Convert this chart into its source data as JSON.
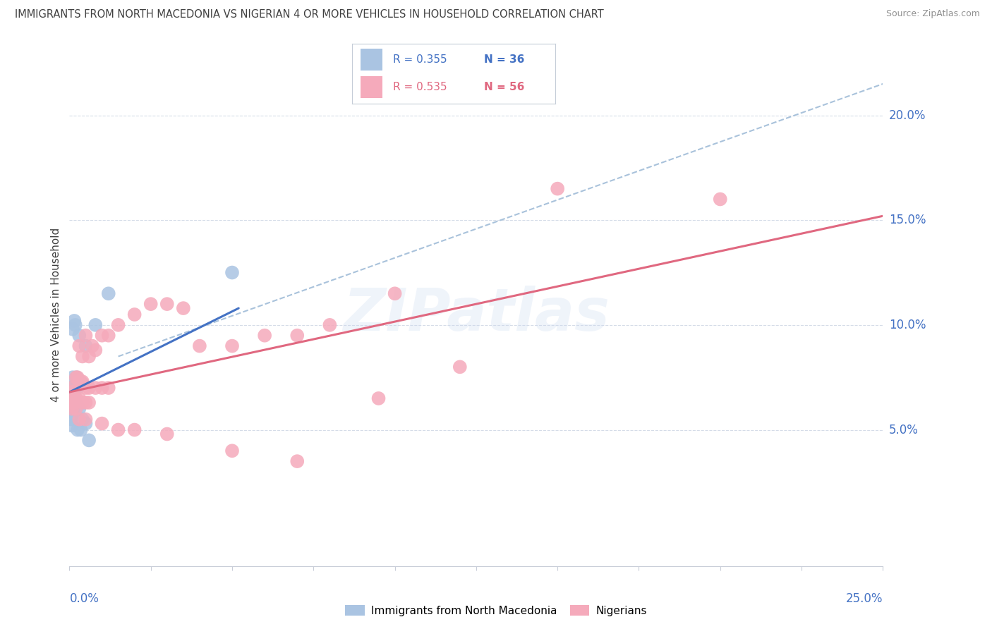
{
  "title": "IMMIGRANTS FROM NORTH MACEDONIA VS NIGERIAN 4 OR MORE VEHICLES IN HOUSEHOLD CORRELATION CHART",
  "source": "Source: ZipAtlas.com",
  "ylabel": "4 or more Vehicles in Household",
  "xlim": [
    0.0,
    25.0
  ],
  "ylim": [
    -1.5,
    22.5
  ],
  "ytick_values": [
    5.0,
    10.0,
    15.0,
    20.0
  ],
  "ytick_labels": [
    "5.0%",
    "10.0%",
    "15.0%",
    "20.0%"
  ],
  "watermark": "ZIPatlas",
  "blue_scatter_x": [
    0.05,
    0.05,
    0.05,
    0.05,
    0.08,
    0.08,
    0.08,
    0.08,
    0.1,
    0.1,
    0.1,
    0.1,
    0.12,
    0.12,
    0.12,
    0.15,
    0.15,
    0.15,
    0.18,
    0.18,
    0.2,
    0.22,
    0.25,
    0.25,
    0.3,
    0.35,
    0.4,
    0.4,
    0.5,
    0.6,
    0.1,
    0.3,
    0.5,
    0.8,
    5.0,
    1.2
  ],
  "blue_scatter_y": [
    6.5,
    6.0,
    5.5,
    7.0,
    6.5,
    6.3,
    6.0,
    5.2,
    6.5,
    6.3,
    6.0,
    7.5,
    7.0,
    6.3,
    5.8,
    10.2,
    6.5,
    6.3,
    10.0,
    6.3,
    7.2,
    7.5,
    7.0,
    5.0,
    6.0,
    5.0,
    7.2,
    5.5,
    5.3,
    4.5,
    9.8,
    9.5,
    9.0,
    10.0,
    12.5,
    11.5
  ],
  "pink_scatter_x": [
    0.05,
    0.08,
    0.1,
    0.12,
    0.15,
    0.08,
    0.1,
    0.15,
    0.2,
    0.08,
    0.3,
    0.5,
    0.4,
    0.6,
    0.7,
    0.8,
    1.0,
    1.2,
    1.5,
    2.0,
    2.5,
    3.0,
    3.5,
    4.0,
    5.0,
    6.0,
    7.0,
    8.0,
    10.0,
    12.0,
    0.2,
    0.25,
    0.3,
    0.35,
    0.4,
    0.5,
    0.6,
    0.8,
    1.0,
    1.2,
    0.2,
    0.3,
    0.4,
    0.5,
    0.6,
    0.3,
    0.5,
    1.0,
    1.5,
    2.0,
    3.0,
    5.0,
    7.0,
    9.5,
    20.0,
    15.0
  ],
  "pink_scatter_y": [
    7.0,
    6.8,
    6.8,
    6.5,
    6.5,
    6.3,
    6.3,
    6.3,
    6.0,
    6.0,
    9.0,
    9.5,
    8.5,
    8.5,
    9.0,
    8.8,
    9.5,
    9.5,
    10.0,
    10.5,
    11.0,
    11.0,
    10.8,
    9.0,
    9.0,
    9.5,
    9.5,
    10.0,
    11.5,
    8.0,
    7.5,
    7.5,
    7.3,
    7.3,
    7.3,
    7.0,
    7.0,
    7.0,
    7.0,
    7.0,
    6.5,
    6.5,
    6.3,
    6.3,
    6.3,
    5.5,
    5.5,
    5.3,
    5.0,
    5.0,
    4.8,
    4.0,
    3.5,
    6.5,
    16.0,
    16.5
  ],
  "blue_marker_color": "#aac4e2",
  "pink_marker_color": "#f5aabb",
  "blue_line_color": "#4472c4",
  "pink_line_color": "#e06880",
  "blue_dashed_color": "#9ab8d5",
  "grid_color": "#d5dce8",
  "axis_text_color": "#4472c4",
  "title_color": "#404040",
  "source_color": "#909090",
  "bg_color": "#ffffff",
  "blue_line_x_start": 0.0,
  "blue_line_x_end": 5.2,
  "blue_dashed_x_start": 1.5,
  "blue_dashed_x_end": 25.0,
  "pink_line_x_start": 0.0,
  "pink_line_x_end": 25.0,
  "blue_line_y_start": 6.8,
  "blue_line_y_end": 10.8,
  "blue_dashed_y_start": 8.5,
  "blue_dashed_y_end": 21.5,
  "pink_line_y_start": 6.8,
  "pink_line_y_end": 15.2
}
